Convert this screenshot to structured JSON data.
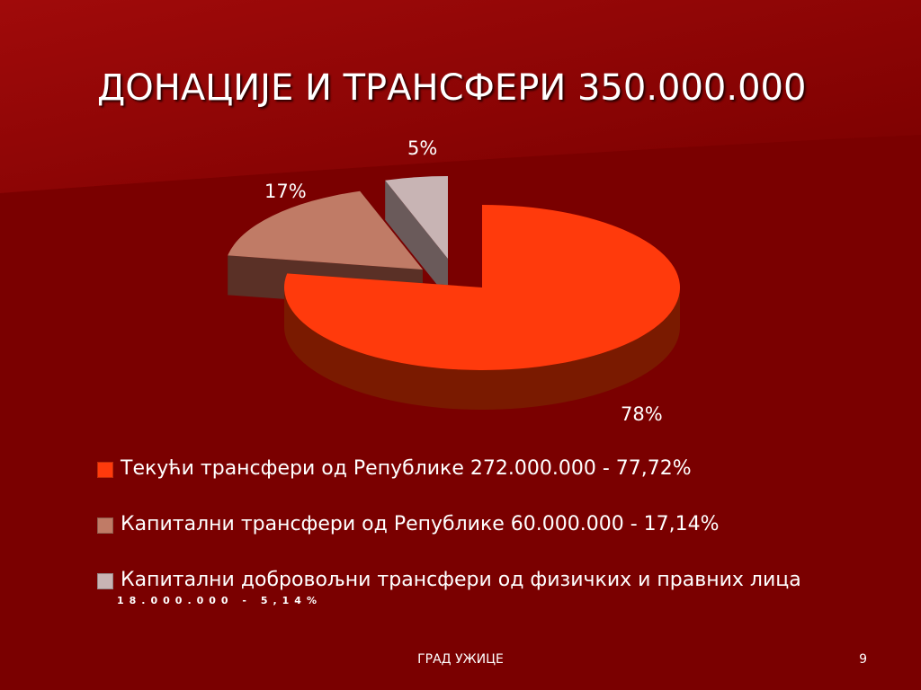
{
  "slide": {
    "title": "ДОНАЦИЈЕ И ТРАНСФЕРИ 350.000.000",
    "footer": "ГРАД УЖИЦЕ",
    "page_number": "9"
  },
  "colors": {
    "background": "#7a0000",
    "background_light": "#9a0c0c",
    "slice_1": "#ff3a0c",
    "slice_1_side": "#7a1a00",
    "slice_2": "#c07b66",
    "slice_2_side": "#5a3026",
    "slice_3": "#c8b4b4",
    "slice_3_side": "#6a5a5a"
  },
  "chart_data": {
    "type": "pie",
    "three_d": true,
    "labels": [
      "78%",
      "17%",
      "5%"
    ],
    "values": [
      77.72,
      17.14,
      5.14
    ],
    "amounts": [
      272000000,
      60000000,
      18000000
    ],
    "legend_placement": "bottom",
    "legend": [
      {
        "text": "Текући трансфери од Републике 272.000.000 - 77,72%",
        "sub": ""
      },
      {
        "text": "Капитални  трансфери од Републике 60.000.000 - 17,14%",
        "sub": ""
      },
      {
        "text": "Капитални добровољни трансфери од физичких и правних лица",
        "sub": "18.000.000 - 5,14%"
      }
    ]
  }
}
